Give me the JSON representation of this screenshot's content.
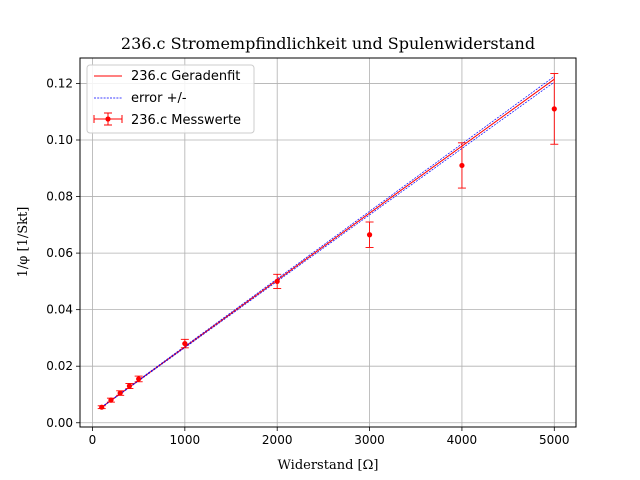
{
  "chart_data": {
    "type": "scatter",
    "title": "236.c Stromempfindlichkeit und Spulenwiderstand",
    "xlabel": "Widerstand [Ω]",
    "ylabel": "1/φ [1/Skt]",
    "xlim": [
      -135,
      5235
    ],
    "ylim": [
      -0.0015,
      0.129
    ],
    "xticks": [
      0,
      1000,
      2000,
      3000,
      4000,
      5000
    ],
    "yticks": [
      0.0,
      0.02,
      0.04,
      0.06,
      0.08,
      0.1,
      0.12
    ],
    "ytick_labels": [
      "0.00",
      "0.02",
      "0.04",
      "0.06",
      "0.08",
      "0.10",
      "0.12"
    ],
    "grid": true,
    "legend_position": "top-left",
    "colors": {
      "fit": "#ff0000",
      "error": "#0000ff",
      "points": "#ff0000",
      "grid": "#b0b0b0"
    },
    "fit": {
      "name": "236.c Geradenfit",
      "x": [
        100,
        5000
      ],
      "y": [
        0.0055,
        0.1215
      ]
    },
    "error_band": {
      "name": "error +/-",
      "x": [
        100,
        5000
      ],
      "upper": [
        0.0056,
        0.1225
      ],
      "lower": [
        0.0054,
        0.1205
      ]
    },
    "measurements": {
      "name": "236.c Messwerte",
      "points": [
        {
          "x": 100,
          "y": 0.0055,
          "yerr": 0.0005
        },
        {
          "x": 200,
          "y": 0.008,
          "yerr": 0.0007
        },
        {
          "x": 300,
          "y": 0.0105,
          "yerr": 0.0008
        },
        {
          "x": 400,
          "y": 0.013,
          "yerr": 0.0009
        },
        {
          "x": 500,
          "y": 0.0155,
          "yerr": 0.001
        },
        {
          "x": 1000,
          "y": 0.028,
          "yerr": 0.0015
        },
        {
          "x": 2000,
          "y": 0.05,
          "yerr": 0.0025
        },
        {
          "x": 3000,
          "y": 0.0665,
          "yerr": 0.0045
        },
        {
          "x": 4000,
          "y": 0.091,
          "yerr": 0.008
        },
        {
          "x": 5000,
          "y": 0.111,
          "yerr": 0.0125
        }
      ]
    }
  }
}
